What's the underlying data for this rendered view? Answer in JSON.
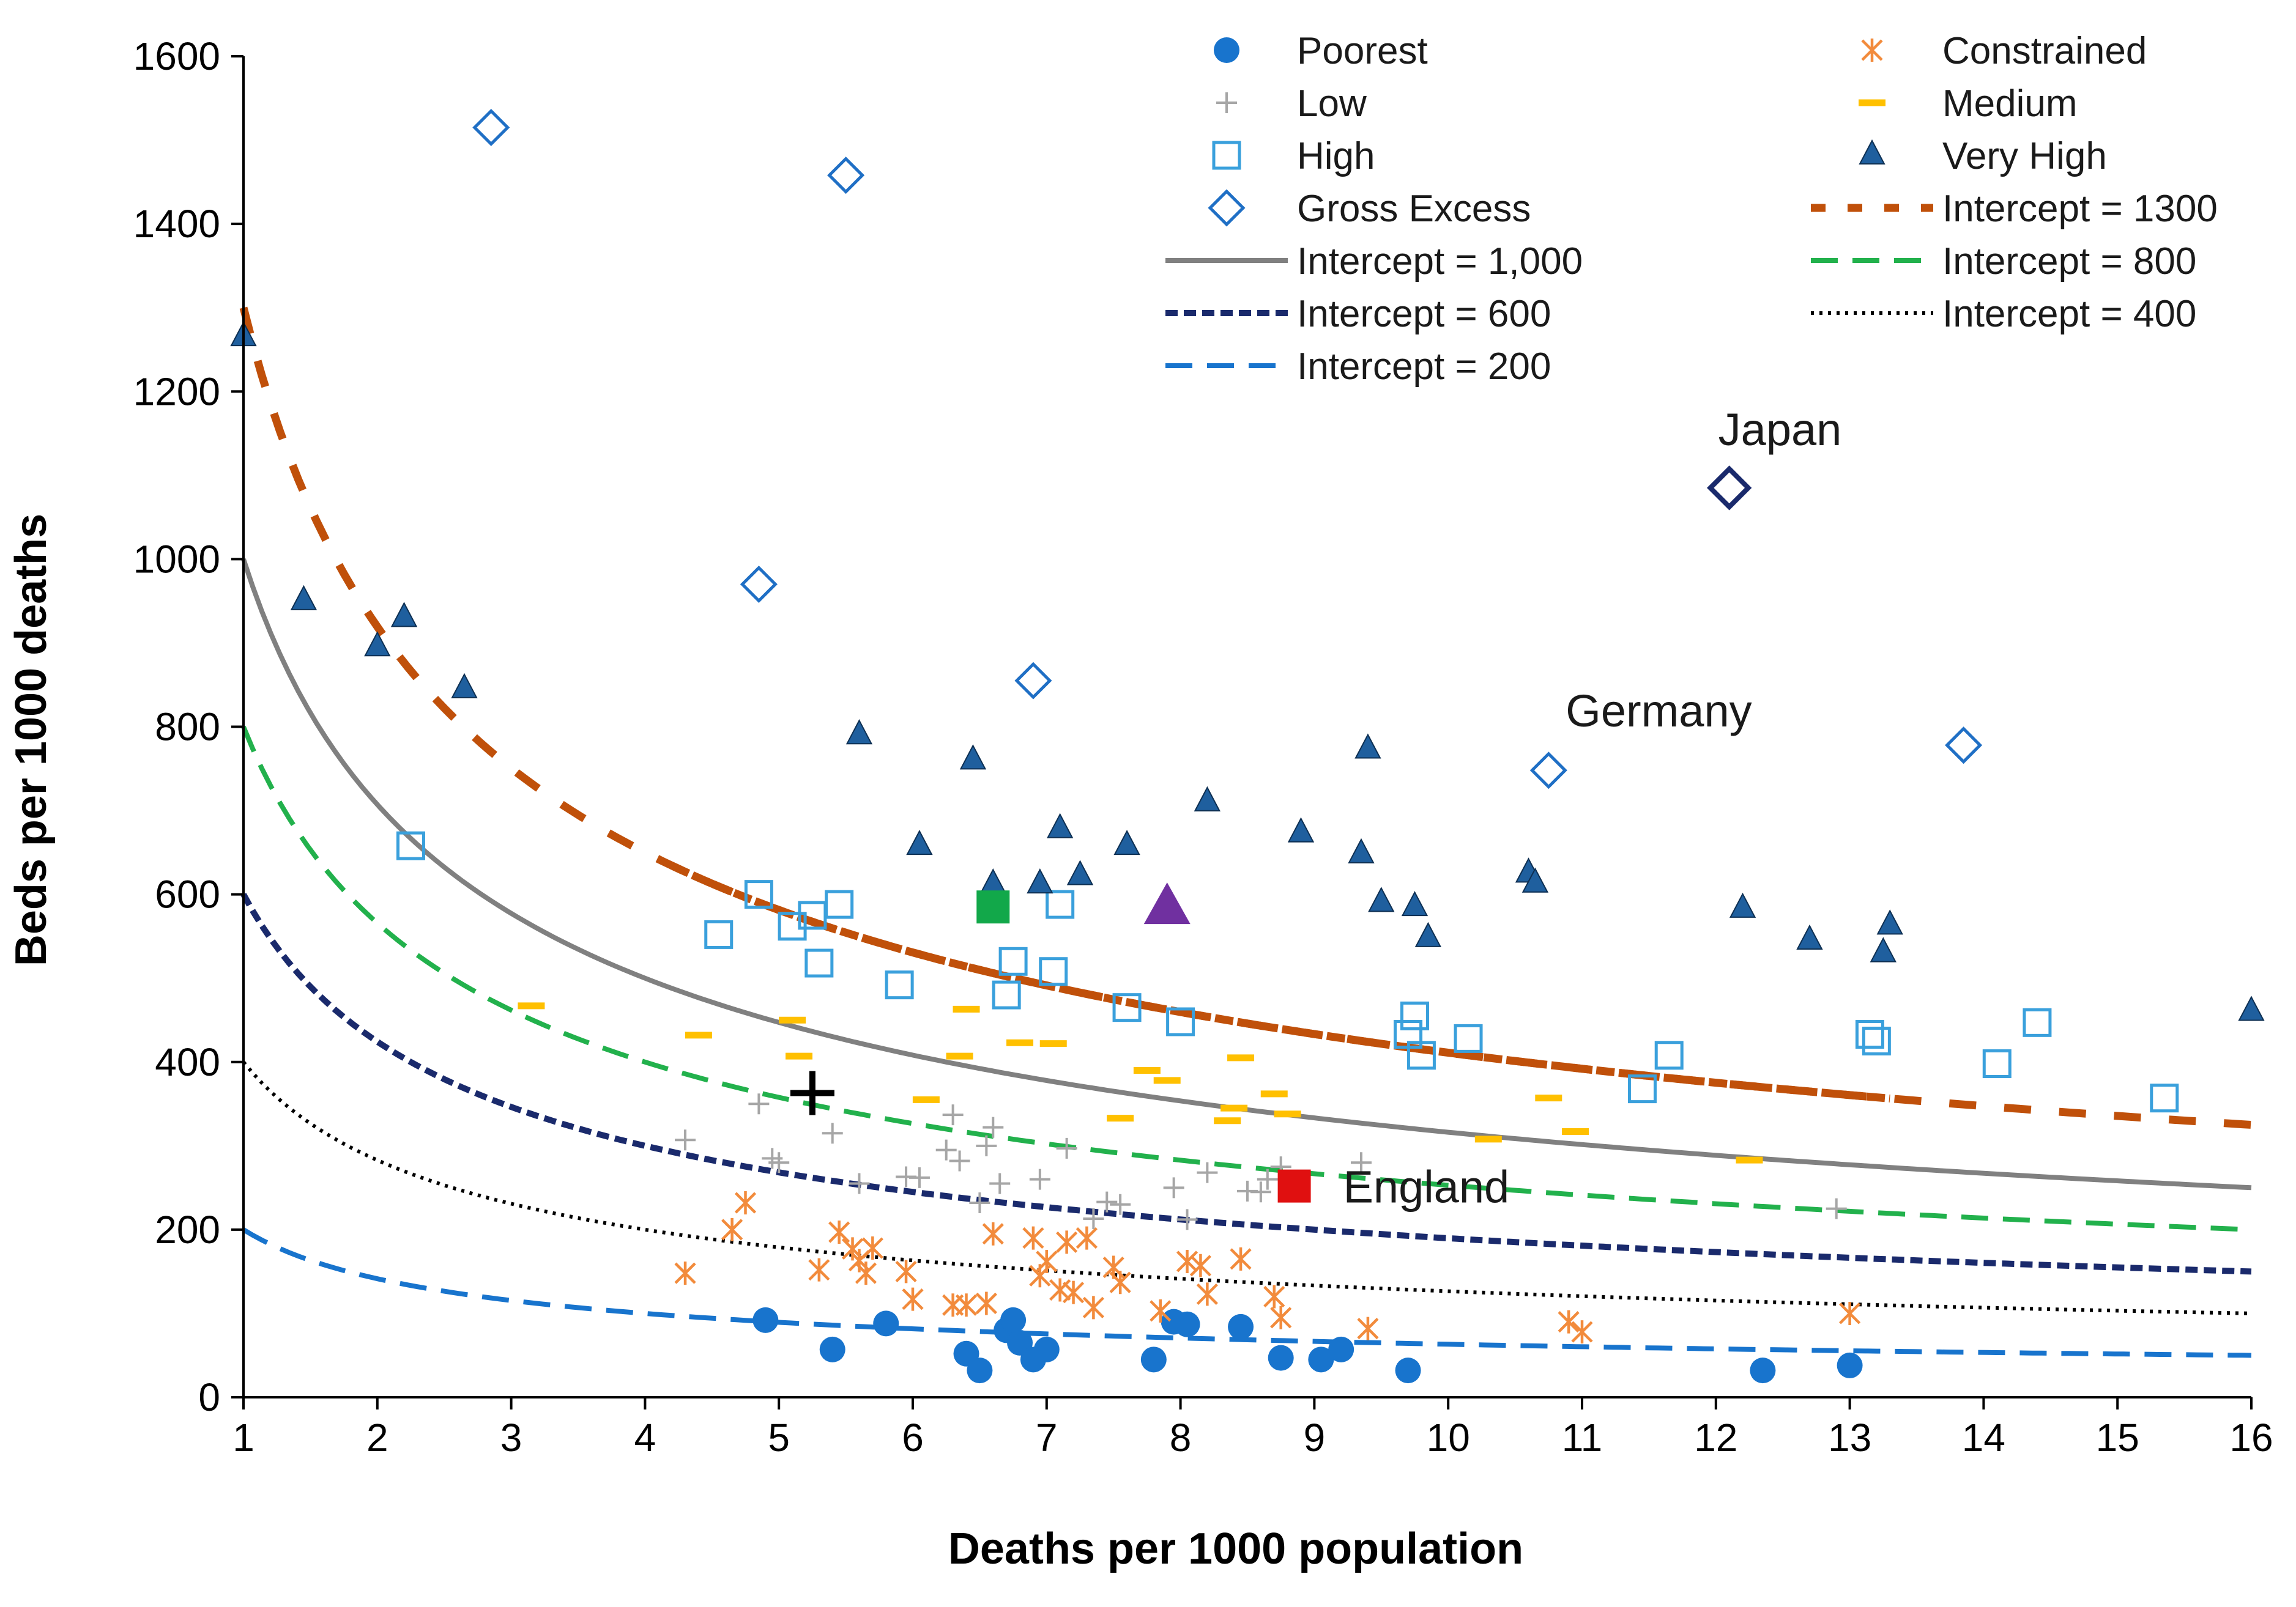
{
  "colors": {
    "poorest": "#1874CD",
    "low": "#A6A6A6",
    "high": "#3AA0DC",
    "gross_excess": "#1F6FC5",
    "constrained": "#F28B3C",
    "medium": "#FFC000",
    "very_high": "#1F5F9E",
    "intercept_1300": "#C0500A",
    "intercept_1000": "#808080",
    "intercept_800": "#22B14C",
    "intercept_600": "#1A2A6C",
    "intercept_400": "#000000",
    "intercept_200": "#1874CD",
    "japan": "#1A2A6C",
    "england": "#E01010",
    "green_marker": "#12A84A",
    "purple_marker": "#7030A0",
    "cross_marker": "#000000"
  },
  "chart_data": {
    "type": "scatter",
    "title": "",
    "xlabel": "Deaths per 1000 population",
    "ylabel": "Beds per 1000 deaths",
    "xlim": [
      1,
      16
    ],
    "ylim": [
      0,
      1600
    ],
    "x_ticks": [
      1,
      2,
      3,
      4,
      5,
      6,
      7,
      8,
      9,
      10,
      11,
      12,
      13,
      14,
      15,
      16
    ],
    "y_ticks": [
      0,
      200,
      400,
      600,
      800,
      1000,
      1200,
      1400,
      1600
    ],
    "grid": false,
    "legend_position": "top-right",
    "legend": [
      {
        "key": "poorest",
        "label": "Poorest",
        "kind": "circle"
      },
      {
        "key": "constrained",
        "label": "Constrained",
        "kind": "asterisk"
      },
      {
        "key": "low",
        "label": "Low",
        "kind": "plus"
      },
      {
        "key": "medium",
        "label": "Medium",
        "kind": "dash"
      },
      {
        "key": "high",
        "label": "High",
        "kind": "square"
      },
      {
        "key": "very_high",
        "label": "Very High",
        "kind": "triangle"
      },
      {
        "key": "gross_excess",
        "label": "Gross Excess",
        "kind": "diamond"
      },
      {
        "key": "intercept_1300",
        "label": "Intercept = 1300",
        "kind": "line"
      },
      {
        "key": "intercept_1000",
        "label": "Intercept = 1,000",
        "kind": "line"
      },
      {
        "key": "intercept_800",
        "label": "Intercept = 800",
        "kind": "line"
      },
      {
        "key": "intercept_600",
        "label": "Intercept = 600",
        "kind": "line"
      },
      {
        "key": "intercept_400",
        "label": "Intercept = 400",
        "kind": "line"
      },
      {
        "key": "intercept_200",
        "label": "Intercept = 200",
        "kind": "line"
      }
    ],
    "curves": [
      {
        "key": "intercept_1300",
        "intercept": 1300,
        "x_range": [
          1,
          16
        ],
        "style": "bigdash"
      },
      {
        "key": "intercept_1000",
        "intercept": 1000,
        "x_range": [
          1,
          16
        ],
        "style": "solid"
      },
      {
        "key": "intercept_800",
        "intercept": 800,
        "x_range": [
          1,
          16
        ],
        "style": "longdash"
      },
      {
        "key": "intercept_600",
        "intercept": 600,
        "x_range": [
          1,
          16
        ],
        "style": "shortdash"
      },
      {
        "key": "intercept_400",
        "intercept": 400,
        "x_range": [
          1,
          16
        ],
        "style": "dotted"
      },
      {
        "key": "intercept_200",
        "intercept": 200,
        "x_range": [
          1,
          16
        ],
        "style": "longdash"
      }
    ],
    "series": [
      {
        "key": "poorest",
        "name": "Poorest",
        "marker": "circle",
        "points": [
          [
            4.9,
            92
          ],
          [
            5.4,
            57
          ],
          [
            5.8,
            88
          ],
          [
            6.4,
            52
          ],
          [
            6.5,
            32
          ],
          [
            6.7,
            80
          ],
          [
            6.75,
            92
          ],
          [
            6.8,
            65
          ],
          [
            6.9,
            45
          ],
          [
            7.0,
            57
          ],
          [
            7.8,
            45
          ],
          [
            7.95,
            90
          ],
          [
            8.05,
            87
          ],
          [
            8.45,
            84
          ],
          [
            8.75,
            47
          ],
          [
            9.05,
            45
          ],
          [
            9.2,
            57
          ],
          [
            9.7,
            32
          ],
          [
            12.35,
            32
          ],
          [
            13.0,
            38
          ]
        ]
      },
      {
        "key": "constrained",
        "name": "Constrained",
        "marker": "asterisk",
        "points": [
          [
            4.3,
            148
          ],
          [
            4.65,
            200
          ],
          [
            4.75,
            232
          ],
          [
            5.3,
            152
          ],
          [
            5.45,
            197
          ],
          [
            5.55,
            177
          ],
          [
            5.6,
            163
          ],
          [
            5.65,
            148
          ],
          [
            5.7,
            178
          ],
          [
            5.95,
            150
          ],
          [
            6.0,
            117
          ],
          [
            6.3,
            110
          ],
          [
            6.4,
            110
          ],
          [
            6.55,
            112
          ],
          [
            6.6,
            195
          ],
          [
            6.9,
            190
          ],
          [
            6.95,
            145
          ],
          [
            7.0,
            162
          ],
          [
            7.1,
            128
          ],
          [
            7.15,
            185
          ],
          [
            7.2,
            125
          ],
          [
            7.3,
            190
          ],
          [
            7.35,
            107
          ],
          [
            7.5,
            155
          ],
          [
            7.55,
            137
          ],
          [
            7.85,
            103
          ],
          [
            8.05,
            162
          ],
          [
            8.15,
            157
          ],
          [
            8.2,
            123
          ],
          [
            8.45,
            165
          ],
          [
            8.7,
            120
          ],
          [
            8.75,
            95
          ],
          [
            9.4,
            82
          ],
          [
            10.9,
            90
          ],
          [
            11.0,
            78
          ],
          [
            13.0,
            100
          ]
        ]
      },
      {
        "key": "low",
        "name": "Low",
        "marker": "plus",
        "points": [
          [
            4.3,
            307
          ],
          [
            4.85,
            350
          ],
          [
            4.95,
            285
          ],
          [
            5.0,
            280
          ],
          [
            5.4,
            315
          ],
          [
            5.6,
            255
          ],
          [
            5.95,
            263
          ],
          [
            6.05,
            262
          ],
          [
            6.25,
            295
          ],
          [
            6.3,
            337
          ],
          [
            6.35,
            282
          ],
          [
            6.5,
            232
          ],
          [
            6.55,
            300
          ],
          [
            6.6,
            322
          ],
          [
            6.65,
            255
          ],
          [
            6.95,
            260
          ],
          [
            7.15,
            297
          ],
          [
            7.35,
            213
          ],
          [
            7.45,
            233
          ],
          [
            7.55,
            230
          ],
          [
            7.95,
            250
          ],
          [
            8.05,
            212
          ],
          [
            8.2,
            268
          ],
          [
            8.5,
            246
          ],
          [
            8.6,
            245
          ],
          [
            8.65,
            260
          ],
          [
            8.75,
            275
          ],
          [
            9.35,
            280
          ],
          [
            12.9,
            225
          ]
        ]
      },
      {
        "key": "medium",
        "name": "Medium",
        "marker": "dash",
        "points": [
          [
            3.15,
            467
          ],
          [
            4.4,
            432
          ],
          [
            5.1,
            450
          ],
          [
            5.15,
            407
          ],
          [
            6.1,
            355
          ],
          [
            6.35,
            407
          ],
          [
            6.4,
            463
          ],
          [
            6.8,
            423
          ],
          [
            7.05,
            422
          ],
          [
            7.55,
            333
          ],
          [
            7.75,
            390
          ],
          [
            7.9,
            378
          ],
          [
            8.35,
            330
          ],
          [
            8.4,
            345
          ],
          [
            8.45,
            405
          ],
          [
            8.7,
            362
          ],
          [
            8.8,
            338
          ],
          [
            10.3,
            308
          ],
          [
            10.75,
            357
          ],
          [
            10.95,
            317
          ],
          [
            12.25,
            283
          ]
        ]
      },
      {
        "key": "high",
        "name": "High",
        "marker": "square",
        "points": [
          [
            2.25,
            658
          ],
          [
            4.55,
            552
          ],
          [
            4.85,
            600
          ],
          [
            5.1,
            562
          ],
          [
            5.25,
            575
          ],
          [
            5.3,
            518
          ],
          [
            5.45,
            588
          ],
          [
            5.9,
            492
          ],
          [
            6.7,
            480
          ],
          [
            6.75,
            520
          ],
          [
            7.05,
            508
          ],
          [
            7.1,
            588
          ],
          [
            7.6,
            465
          ],
          [
            8.0,
            448
          ],
          [
            9.7,
            433
          ],
          [
            9.75,
            455
          ],
          [
            9.8,
            408
          ],
          [
            10.15,
            428
          ],
          [
            11.45,
            368
          ],
          [
            11.65,
            408
          ],
          [
            13.15,
            433
          ],
          [
            13.2,
            425
          ],
          [
            14.1,
            398
          ],
          [
            14.4,
            447
          ],
          [
            15.35,
            357
          ]
        ]
      },
      {
        "key": "very_high",
        "name": "Very High",
        "marker": "triangle",
        "points": [
          [
            1.0,
            1265
          ],
          [
            1.45,
            950
          ],
          [
            2.0,
            895
          ],
          [
            2.2,
            930
          ],
          [
            2.65,
            845
          ],
          [
            5.6,
            790
          ],
          [
            6.05,
            658
          ],
          [
            6.45,
            760
          ],
          [
            6.6,
            612
          ],
          [
            6.95,
            612
          ],
          [
            7.1,
            678
          ],
          [
            7.25,
            622
          ],
          [
            7.6,
            658
          ],
          [
            8.2,
            710
          ],
          [
            8.9,
            673
          ],
          [
            9.35,
            648
          ],
          [
            9.4,
            773
          ],
          [
            9.5,
            590
          ],
          [
            9.75,
            585
          ],
          [
            9.85,
            548
          ],
          [
            10.6,
            625
          ],
          [
            10.65,
            613
          ],
          [
            12.2,
            583
          ],
          [
            12.7,
            545
          ],
          [
            13.25,
            530
          ],
          [
            13.3,
            563
          ],
          [
            16.0,
            460
          ]
        ]
      },
      {
        "key": "gross_excess",
        "name": "Gross Excess",
        "marker": "diamond",
        "points": [
          [
            2.85,
            1515
          ],
          [
            4.85,
            970
          ],
          [
            5.5,
            1458
          ],
          [
            6.9,
            855
          ],
          [
            10.75,
            748
          ],
          [
            13.85,
            778
          ]
        ]
      }
    ],
    "highlights": [
      {
        "key": "japan",
        "label": "Japan",
        "x": 12.1,
        "y": 1085,
        "marker": "diamond-bold"
      },
      {
        "key": "germany",
        "label": "Germany",
        "x": 10.75,
        "y": 748,
        "marker": "none"
      },
      {
        "key": "england",
        "label": "England",
        "x": 8.85,
        "y": 252,
        "marker": "square-filled"
      },
      {
        "key": "green_marker",
        "label": "",
        "x": 6.6,
        "y": 585,
        "marker": "square-filled"
      },
      {
        "key": "purple_marker",
        "label": "",
        "x": 7.9,
        "y": 585,
        "marker": "triangle-filled"
      },
      {
        "key": "cross_marker",
        "label": "",
        "x": 5.25,
        "y": 363,
        "marker": "cross-bold"
      }
    ]
  }
}
